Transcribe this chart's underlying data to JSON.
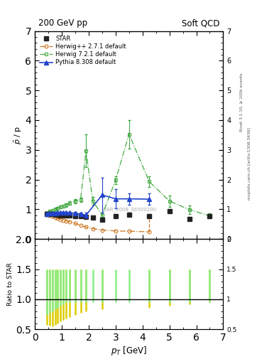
{
  "title_left": "200 GeV pp",
  "title_right": "Soft QCD",
  "ylabel_main": "$\\bar{p}$ / p",
  "ylabel_ratio": "Ratio to STAR",
  "xlabel": "$p_{T}$ [GeV]",
  "right_label_top": "Rivet 3.1.10, ≥ 100k events",
  "right_label_bot": "mcplots.cern.ch [arXiv:1306.3436]",
  "watermark": "STAR_2008_S6500200",
  "ylim_main": [
    0,
    7
  ],
  "ylim_ratio": [
    0.5,
    2.0
  ],
  "xlim": [
    0,
    7
  ],
  "star_x": [
    0.45,
    0.55,
    0.65,
    0.75,
    0.85,
    0.95,
    1.05,
    1.15,
    1.3,
    1.5,
    1.7,
    1.9,
    2.15,
    2.5,
    3.0,
    3.5,
    4.25,
    5.0,
    5.75,
    6.5
  ],
  "star_y": [
    0.83,
    0.84,
    0.83,
    0.82,
    0.81,
    0.8,
    0.8,
    0.79,
    0.79,
    0.78,
    0.76,
    0.74,
    0.72,
    0.64,
    0.76,
    0.82,
    0.76,
    0.93,
    0.68,
    0.77
  ],
  "star_yerr": [
    0.02,
    0.02,
    0.02,
    0.02,
    0.02,
    0.02,
    0.02,
    0.02,
    0.02,
    0.03,
    0.03,
    0.04,
    0.04,
    0.05,
    0.05,
    0.06,
    0.07,
    0.07,
    0.07,
    0.08
  ],
  "herwig_pp_x": [
    0.45,
    0.55,
    0.65,
    0.75,
    0.85,
    0.95,
    1.05,
    1.15,
    1.3,
    1.5,
    1.7,
    1.9,
    2.15,
    2.5,
    3.0,
    3.5,
    4.25
  ],
  "herwig_pp_y": [
    0.82,
    0.79,
    0.76,
    0.72,
    0.69,
    0.66,
    0.63,
    0.61,
    0.58,
    0.52,
    0.46,
    0.4,
    0.35,
    0.3,
    0.27,
    0.26,
    0.24
  ],
  "herwig_pp_x2": [
    4.25
  ],
  "herwig_pp_y2": [
    0.68
  ],
  "herwig72_x": [
    0.45,
    0.55,
    0.65,
    0.75,
    0.85,
    0.95,
    1.05,
    1.15,
    1.3,
    1.5,
    1.7,
    1.9,
    2.15,
    2.5,
    3.0,
    3.5,
    4.25,
    5.0,
    5.75,
    6.5
  ],
  "herwig72_y": [
    0.88,
    0.93,
    0.97,
    1.0,
    1.04,
    1.08,
    1.1,
    1.15,
    1.2,
    1.28,
    1.32,
    2.98,
    1.28,
    0.8,
    1.98,
    3.53,
    1.93,
    1.28,
    0.98,
    0.78
  ],
  "herwig72_yerr": [
    0.04,
    0.04,
    0.04,
    0.04,
    0.05,
    0.05,
    0.05,
    0.06,
    0.06,
    0.07,
    0.08,
    0.55,
    0.14,
    0.09,
    0.14,
    0.48,
    0.19,
    0.19,
    0.14,
    0.09
  ],
  "pythia_x": [
    0.45,
    0.55,
    0.65,
    0.75,
    0.85,
    0.95,
    1.05,
    1.15,
    1.3,
    1.5,
    1.7,
    1.9,
    2.5,
    3.0,
    3.5,
    4.25
  ],
  "pythia_y": [
    0.85,
    0.86,
    0.87,
    0.87,
    0.88,
    0.88,
    0.88,
    0.88,
    0.88,
    0.87,
    0.84,
    0.8,
    1.48,
    1.35,
    1.35,
    1.34
  ],
  "pythia_yerr_lo": [
    0.03,
    0.03,
    0.03,
    0.03,
    0.03,
    0.03,
    0.03,
    0.03,
    0.04,
    0.05,
    0.06,
    0.08,
    0.58,
    0.33,
    0.19,
    0.19
  ],
  "pythia_yerr_hi": [
    0.03,
    0.03,
    0.03,
    0.03,
    0.03,
    0.03,
    0.03,
    0.03,
    0.04,
    0.05,
    0.06,
    0.08,
    0.58,
    0.33,
    0.19,
    0.19
  ],
  "ratio_yellow_x": [
    0.45,
    0.55,
    0.65,
    0.75,
    0.85,
    0.95,
    1.05,
    1.15,
    1.3,
    1.5,
    1.7,
    1.9,
    2.5,
    4.25,
    5.0,
    5.75,
    6.5
  ],
  "ratio_yellow_lo": [
    0.57,
    0.56,
    0.55,
    0.57,
    0.6,
    0.63,
    0.66,
    0.68,
    0.71,
    0.74,
    0.77,
    0.8,
    0.83,
    0.86,
    0.89,
    0.92,
    0.95
  ],
  "ratio_yellow_hi": [
    1.5,
    1.5,
    1.5,
    1.5,
    1.5,
    1.5,
    1.5,
    1.5,
    1.5,
    1.5,
    1.5,
    1.5,
    1.5,
    1.5,
    1.5,
    1.5,
    1.5
  ],
  "ratio_green_x": [
    0.45,
    0.55,
    0.65,
    0.75,
    0.85,
    0.95,
    1.05,
    1.15,
    1.3,
    1.5,
    1.7,
    1.9,
    2.15,
    2.5,
    3.0,
    3.5,
    4.25,
    5.0,
    5.75,
    6.5
  ],
  "ratio_green_lo": [
    0.74,
    0.77,
    0.8,
    0.83,
    0.86,
    0.89,
    0.92,
    0.95,
    0.95,
    0.95,
    0.95,
    0.95,
    0.95,
    0.95,
    0.95,
    0.95,
    0.95,
    0.95,
    0.95,
    0.95
  ],
  "ratio_green_hi": [
    1.5,
    1.5,
    1.5,
    1.5,
    1.5,
    1.5,
    1.5,
    1.5,
    1.5,
    1.5,
    1.5,
    1.5,
    1.5,
    1.5,
    1.5,
    1.5,
    1.5,
    1.5,
    1.5,
    1.5
  ],
  "star_color": "#222222",
  "herwig_pp_color": "#cc7722",
  "herwig72_color": "#44aa44",
  "pythia_color": "#2244cc",
  "background_color": "#ffffff"
}
